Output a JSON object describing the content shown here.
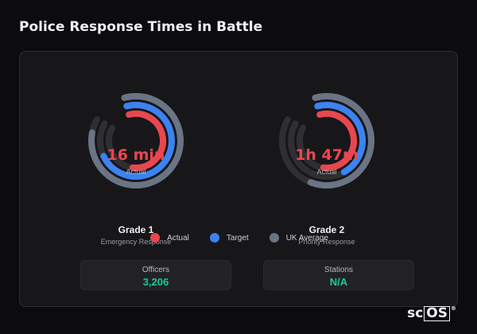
{
  "page": {
    "title": "Police Response Times in Battle"
  },
  "colors": {
    "actual": "#e9474f",
    "target": "#3c82f0",
    "uk_average": "#6b7485",
    "track": "#2e2e33",
    "stat_green": "#1ec997"
  },
  "gauges": [
    {
      "value_text": "16 min",
      "value_sub": "Actual",
      "name": "Grade 1",
      "description": "Emergency Response",
      "actual_fraction": 0.56,
      "target_fraction": 0.72,
      "uk_average_fraction": 0.82
    },
    {
      "value_text": "1h 47m",
      "value_sub": "Actual",
      "name": "Grade 2",
      "description": "Priority Response",
      "actual_fraction": 0.56,
      "target_fraction": 0.46,
      "uk_average_fraction": 0.6
    }
  ],
  "legend": [
    {
      "label": "Actual",
      "color": "#e9474f"
    },
    {
      "label": "Target",
      "color": "#3c82f0"
    },
    {
      "label": "UK Average",
      "color": "#6b7485"
    }
  ],
  "stats": [
    {
      "label": "Officers",
      "value": "3,206"
    },
    {
      "label": "Stations",
      "value": "N/A"
    }
  ],
  "brand": {
    "prefix": "sc",
    "boxed": "OS",
    "mark": "®"
  }
}
